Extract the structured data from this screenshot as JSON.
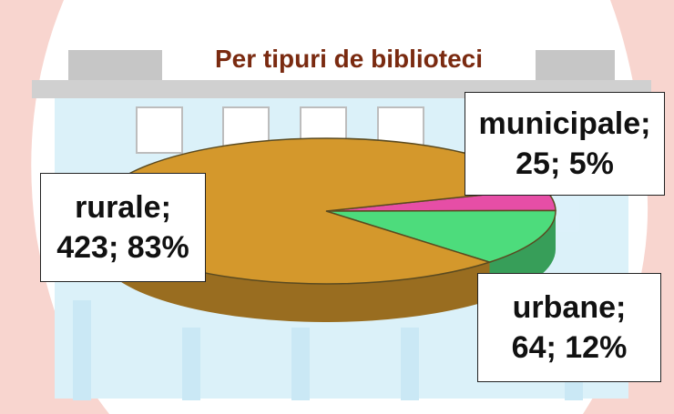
{
  "chart_data": {
    "type": "pie",
    "title": "Per tipuri de biblioteci",
    "values": [
      25,
      64,
      423
    ],
    "value_labels": [
      "municipale;\n25; 5%",
      "urbane;\n64; 12%",
      "rurale;\n423; 83%"
    ],
    "colors": [
      "#e64ea6",
      "#4ddc7c",
      "#d4982c"
    ]
  }
}
